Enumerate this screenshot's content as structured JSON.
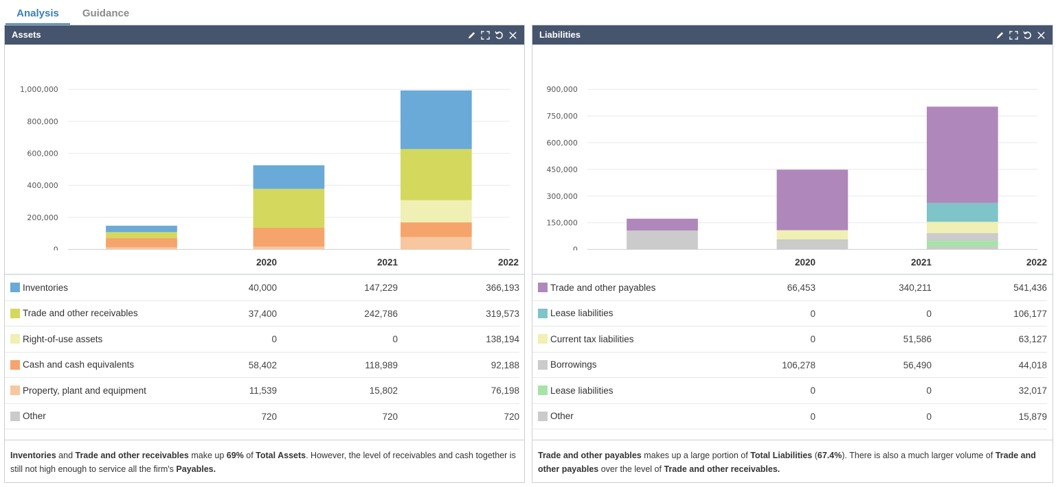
{
  "tabs": [
    {
      "label": "Analysis",
      "active": true
    },
    {
      "label": "Guidance",
      "active": false
    }
  ],
  "colors": {
    "header_bg": "#46556d",
    "accent": "#3a7fb5"
  },
  "panels": {
    "assets": {
      "title": "Assets",
      "tools": [
        "edit-icon",
        "expand-icon",
        "reset-icon",
        "close-icon"
      ],
      "columns": [
        "2020",
        "2021",
        "2022"
      ],
      "rows": [
        {
          "label": "Inventories",
          "color": "#6aaad8",
          "values": [
            "40,000",
            "147,229",
            "366,193"
          ]
        },
        {
          "label": "Trade and other receivables",
          "color": "#d4d95e",
          "values": [
            "37,400",
            "242,786",
            "319,573"
          ]
        },
        {
          "label": "Right-of-use assets",
          "color": "#f0efb4",
          "values": [
            "0",
            "0",
            "138,194"
          ]
        },
        {
          "label": "Cash and cash equivalents",
          "color": "#f5a46c",
          "values": [
            "58,402",
            "118,989",
            "92,188"
          ]
        },
        {
          "label": "Property, plant and equipment",
          "color": "#f8c79f",
          "values": [
            "11,539",
            "15,802",
            "76,198"
          ]
        },
        {
          "label": "Other",
          "color": "#cbcbcb",
          "values": [
            "720",
            "720",
            "720"
          ]
        }
      ],
      "note": {
        "parts": [
          {
            "text": "Inventories",
            "bold": true
          },
          {
            "text": " and ",
            "bold": false
          },
          {
            "text": "Trade and other receivables",
            "bold": true
          },
          {
            "text": " make up ",
            "bold": false
          },
          {
            "text": "69%",
            "bold": true
          },
          {
            "text": " of ",
            "bold": false
          },
          {
            "text": "Total Assets",
            "bold": true
          },
          {
            "text": ". However, the level of receivables and cash together is still not high enough to service all the firm's ",
            "bold": false
          },
          {
            "text": "Payables",
            "bold": true
          },
          {
            "text": ".",
            "bold": true
          }
        ]
      }
    },
    "liabilities": {
      "title": "Liabilities",
      "tools": [
        "edit-icon",
        "expand-icon",
        "reset-icon",
        "close-icon"
      ],
      "columns": [
        "2020",
        "2021",
        "2022"
      ],
      "rows": [
        {
          "label": "Trade and other payables",
          "color": "#b087ba",
          "values": [
            "66,453",
            "340,211",
            "541,436"
          ]
        },
        {
          "label": "Lease liabilities",
          "color": "#7fc4c8",
          "values": [
            "0",
            "0",
            "106,177"
          ]
        },
        {
          "label": "Current tax liabilities",
          "color": "#f0efb4",
          "values": [
            "0",
            "51,586",
            "63,127"
          ]
        },
        {
          "label": "Borrowings",
          "color": "#cbcbcb",
          "values": [
            "106,278",
            "56,490",
            "44,018"
          ]
        },
        {
          "label": "Lease liabilities",
          "color": "#a6e3a6",
          "values": [
            "0",
            "0",
            "32,017"
          ]
        },
        {
          "label": "Other",
          "color": "#cbcbcb",
          "values": [
            "0",
            "0",
            "15,879"
          ]
        }
      ],
      "note": {
        "parts": [
          {
            "text": "Trade and other payables",
            "bold": true
          },
          {
            "text": " makes up a large portion of ",
            "bold": false
          },
          {
            "text": "Total Liabilities",
            "bold": true
          },
          {
            "text": " (",
            "bold": false
          },
          {
            "text": "67.4%",
            "bold": true
          },
          {
            "text": "). There is also a much larger volume of ",
            "bold": false
          },
          {
            "text": "Trade and other payables",
            "bold": true
          },
          {
            "text": "  over the level of ",
            "bold": false
          },
          {
            "text": "Trade and other receivables",
            "bold": true
          },
          {
            "text": ".",
            "bold": true
          }
        ]
      }
    }
  },
  "chart_data": [
    {
      "type": "bar",
      "stacked": true,
      "categories": [
        "2020",
        "2021",
        "2022"
      ],
      "ylim": [
        0,
        1000000
      ],
      "yticks": [
        "0",
        "200,000",
        "400,000",
        "600,000",
        "800,000",
        "1,000,000"
      ],
      "ytick_values": [
        0,
        200000,
        400000,
        600000,
        800000,
        1000000
      ],
      "grid": true,
      "series": [
        {
          "name": "Other",
          "color": "#cbcbcb",
          "values": [
            720,
            720,
            720
          ]
        },
        {
          "name": "Property, plant and equipment",
          "color": "#f8c79f",
          "values": [
            11539,
            15802,
            76198
          ]
        },
        {
          "name": "Cash and cash equivalents",
          "color": "#f5a46c",
          "values": [
            58402,
            118989,
            92188
          ]
        },
        {
          "name": "Right-of-use assets",
          "color": "#f0efb4",
          "values": [
            0,
            0,
            138194
          ]
        },
        {
          "name": "Trade and other receivables",
          "color": "#d4d95e",
          "values": [
            37400,
            242786,
            319573
          ]
        },
        {
          "name": "Inventories",
          "color": "#6aaad8",
          "values": [
            40000,
            147229,
            366193
          ]
        }
      ]
    },
    {
      "type": "bar",
      "stacked": true,
      "categories": [
        "2020",
        "2021",
        "2022"
      ],
      "ylim": [
        0,
        900000
      ],
      "yticks": [
        "0",
        "150,000",
        "300,000",
        "450,000",
        "600,000",
        "750,000",
        "900,000"
      ],
      "ytick_values": [
        0,
        150000,
        300000,
        450000,
        600000,
        750000,
        900000
      ],
      "grid": true,
      "series": [
        {
          "name": "Other",
          "color": "#cbcbcb",
          "values": [
            0,
            0,
            15879
          ]
        },
        {
          "name": "Lease liabilities",
          "color": "#a6e3a6",
          "values": [
            0,
            0,
            32017
          ]
        },
        {
          "name": "Borrowings",
          "color": "#cbcbcb",
          "values": [
            106278,
            56490,
            44018
          ]
        },
        {
          "name": "Current tax liabilities",
          "color": "#f0efb4",
          "values": [
            0,
            51586,
            63127
          ]
        },
        {
          "name": "Lease liabilities",
          "color": "#7fc4c8",
          "values": [
            0,
            0,
            106177
          ]
        },
        {
          "name": "Trade and other payables",
          "color": "#b087ba",
          "values": [
            66453,
            340211,
            541436
          ]
        }
      ]
    }
  ]
}
